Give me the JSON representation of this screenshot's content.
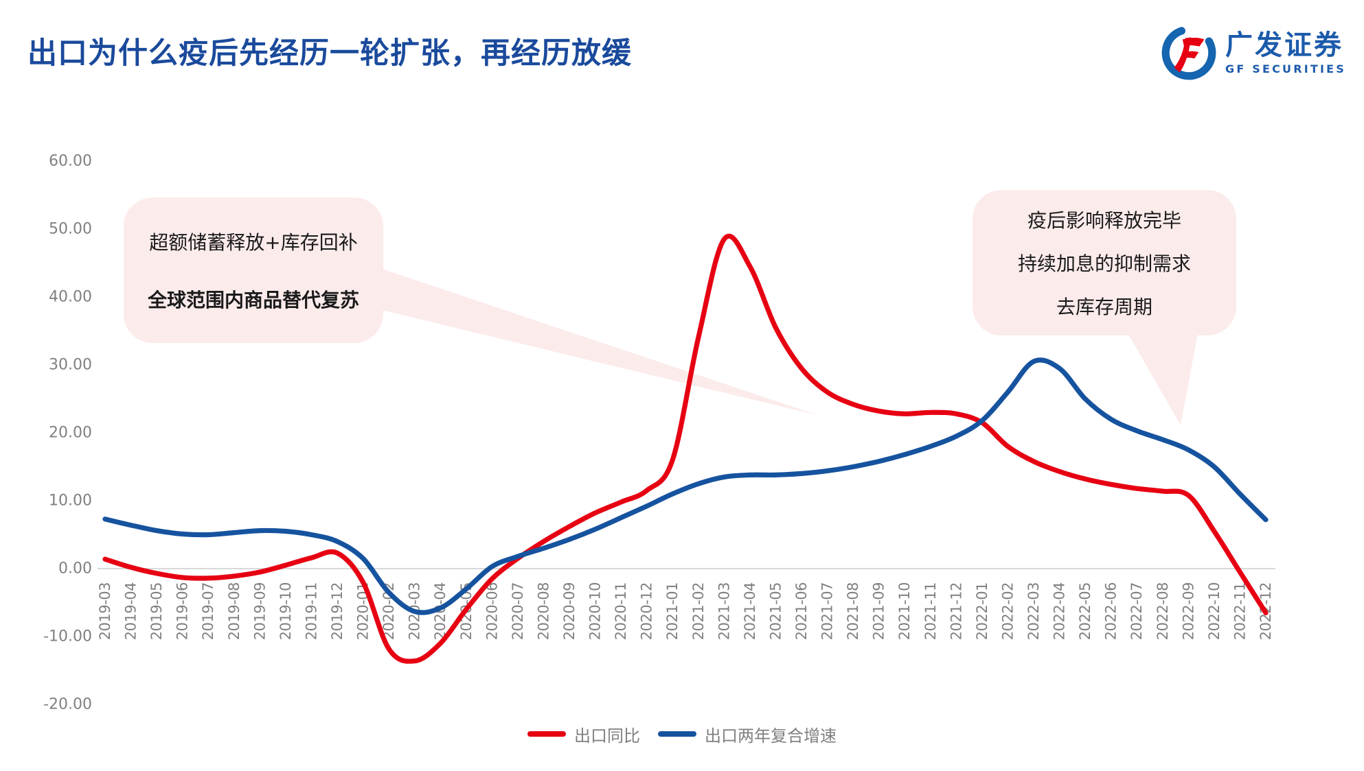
{
  "header": {
    "title": "出口为什么疫后先经历一轮扩张，再经历放缓"
  },
  "logo": {
    "cn": "广发证券",
    "en": "GF SECURITIES"
  },
  "callouts": {
    "left": {
      "line1": "超额储蓄释放+库存回补",
      "line2": "全球范围内商品替代复苏"
    },
    "right": {
      "line1": "疫后影响释放完毕",
      "line2": "持续加息的抑制需求",
      "line3": "去库存周期"
    }
  },
  "legend": {
    "series1": "出口同比",
    "series2": "出口两年复合增速"
  },
  "colors": {
    "red": "#e60012",
    "blue": "#16539f",
    "pink": "#fcebeb",
    "title_blue": "#1a4a9c",
    "logo_blue": "#1c5bab",
    "axis_gray": "#808080",
    "grid_gray": "#d9d9d9"
  },
  "chart_data": {
    "type": "line",
    "title": "",
    "xlabel": "",
    "ylabel": "",
    "ylim": [
      -20,
      60
    ],
    "yticks": [
      60,
      50,
      40,
      30,
      20,
      10,
      0,
      -10,
      -20
    ],
    "grid": "zero-line-only",
    "legend_position": "bottom-center",
    "x": [
      "2019-03",
      "2019-04",
      "2019-05",
      "2019-06",
      "2019-07",
      "2019-08",
      "2019-09",
      "2019-10",
      "2019-11",
      "2019-12",
      "2020-01",
      "2020-02",
      "2020-03",
      "2020-04",
      "2020-05",
      "2020-06",
      "2020-07",
      "2020-08",
      "2020-09",
      "2020-10",
      "2020-11",
      "2020-12",
      "2021-01",
      "2021-02",
      "2021-03",
      "2021-04",
      "2021-05",
      "2021-06",
      "2021-07",
      "2021-08",
      "2021-09",
      "2021-10",
      "2021-11",
      "2021-12",
      "2022-01",
      "2022-02",
      "2022-03",
      "2022-04",
      "2022-05",
      "2022-06",
      "2022-07",
      "2022-08",
      "2022-09",
      "2022-10",
      "2022-11",
      "2022-12"
    ],
    "series": [
      {
        "name": "出口同比",
        "color": "#e60012",
        "values": [
          1.4,
          0.2,
          -0.7,
          -1.3,
          -1.4,
          -1.1,
          -0.5,
          0.5,
          1.6,
          2.3,
          -2.0,
          -11.8,
          -13.6,
          -11.0,
          -6.0,
          -1.5,
          1.5,
          4.0,
          6.2,
          8.2,
          9.8,
          11.5,
          16.0,
          34.0,
          48.5,
          44.5,
          35.5,
          29.5,
          26.0,
          24.2,
          23.2,
          22.8,
          23.0,
          22.8,
          21.5,
          18.0,
          15.8,
          14.3,
          13.2,
          12.4,
          11.8,
          11.4,
          10.8,
          5.5,
          -0.5,
          -6.5
        ]
      },
      {
        "name": "出口两年复合增速",
        "color": "#16539f",
        "values": [
          7.3,
          6.4,
          5.6,
          5.1,
          5.0,
          5.3,
          5.6,
          5.5,
          5.0,
          4.0,
          1.5,
          -3.5,
          -6.3,
          -5.8,
          -3.0,
          0.3,
          1.8,
          3.0,
          4.3,
          5.8,
          7.5,
          9.2,
          11.0,
          12.5,
          13.5,
          13.8,
          13.8,
          14.0,
          14.4,
          15.0,
          15.8,
          16.8,
          18.0,
          19.5,
          21.8,
          26.0,
          30.5,
          29.5,
          25.0,
          22.0,
          20.3,
          19.0,
          17.5,
          15.0,
          11.0,
          7.2
        ]
      }
    ]
  }
}
